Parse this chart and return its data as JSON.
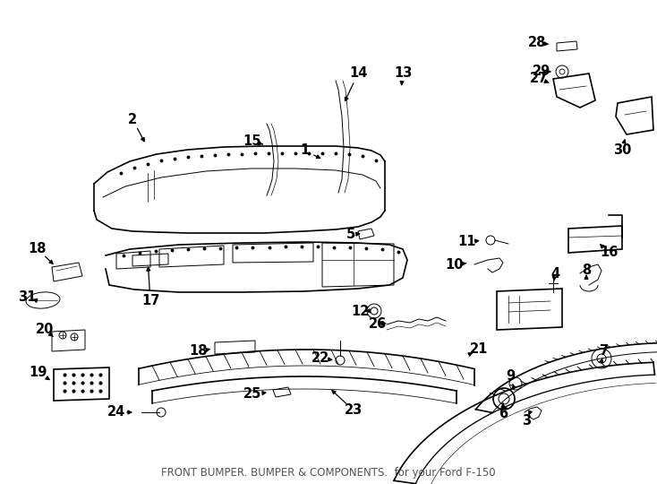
{
  "bg_color": "#ffffff",
  "line_color": "#000000",
  "label_fontsize": 10.5,
  "title_fontsize": 8.5,
  "title": "FRONT BUMPER. BUMPER & COMPONENTS.  for your Ford F-150"
}
